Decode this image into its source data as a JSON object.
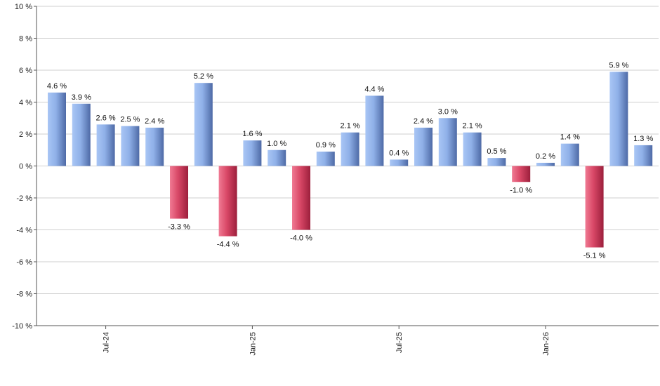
{
  "chart_data": {
    "type": "bar",
    "title": "",
    "xlabel": "",
    "ylabel": "",
    "ylim": [
      -10,
      10
    ],
    "y_ticks": [
      10,
      8,
      6,
      4,
      2,
      0,
      -2,
      -4,
      -6,
      -8,
      -10
    ],
    "y_tick_labels": [
      "10 %",
      "8 %",
      "6 %",
      "4 %",
      "2 %",
      "0 %",
      "-2 %",
      "-4 %",
      "-6 %",
      "-8 %",
      "-10 %"
    ],
    "grid": true,
    "legend": "none",
    "x_tick_labels": [
      {
        "label": "Jul-24",
        "index": 2
      },
      {
        "label": "Jan-25",
        "index": 8
      },
      {
        "label": "Jul-25",
        "index": 14
      },
      {
        "label": "Jan-26",
        "index": 20
      }
    ],
    "values": [
      4.6,
      3.9,
      2.6,
      2.5,
      2.4,
      -3.3,
      5.2,
      -4.4,
      1.6,
      1.0,
      -4.0,
      0.9,
      2.1,
      4.4,
      0.4,
      2.4,
      3.0,
      2.1,
      0.5,
      -1.0,
      0.2,
      1.4,
      -5.1,
      5.9,
      1.3
    ],
    "value_labels": [
      "4.6 %",
      "3.9 %",
      "2.6 %",
      "2.5 %",
      "2.4 %",
      "-3.3 %",
      "5.2 %",
      "-4.4 %",
      "1.6 %",
      "1.0 %",
      "-4.0 %",
      "0.9 %",
      "2.1 %",
      "4.4 %",
      "0.4 %",
      "2.4 %",
      "3.0 %",
      "2.1 %",
      "0.5 %",
      "-1.0 %",
      "0.2 %",
      "1.4 %",
      "-5.1 %",
      "5.9 %",
      "1.3 %"
    ],
    "colors": {
      "positive_light": "#a9c6f5",
      "positive_dark": "#4e6aa6",
      "negative_light": "#f07a93",
      "negative_dark": "#9c1f3c"
    }
  }
}
